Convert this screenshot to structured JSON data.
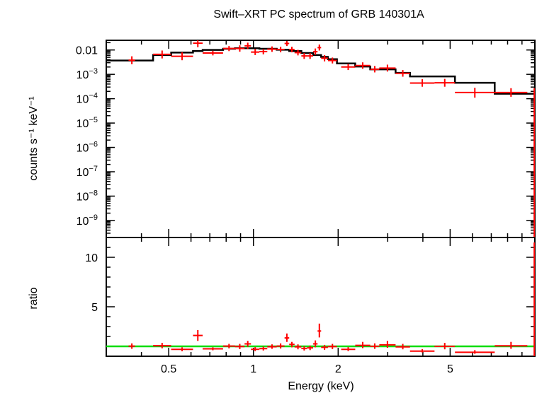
{
  "chart_data": [
    {
      "type": "scatter",
      "panel": "spectrum",
      "title": "Swift–XRT PC spectrum of GRB 140301A",
      "xlabel": "",
      "ylabel": "counts s⁻¹ keV⁻¹",
      "x_scale": "log",
      "y_scale": "log",
      "xlim": [
        0.3,
        10
      ],
      "ylim": [
        2e-10,
        0.025
      ],
      "y_ticks": [
        {
          "value": 0.01,
          "label": "0.01",
          "mantissa": "0.01",
          "exp": ""
        },
        {
          "value": 0.001,
          "label": "10⁻³",
          "mantissa": "10",
          "exp": "−3"
        },
        {
          "value": 0.0001,
          "label": "10⁻⁴",
          "mantissa": "10",
          "exp": "−4"
        },
        {
          "value": 1e-05,
          "label": "10⁻⁵",
          "mantissa": "10",
          "exp": "−5"
        },
        {
          "value": 1e-06,
          "label": "10⁻⁶",
          "mantissa": "10",
          "exp": "−6"
        },
        {
          "value": 1e-07,
          "label": "10⁻⁷",
          "mantissa": "10",
          "exp": "−7"
        },
        {
          "value": 1e-08,
          "label": "10⁻⁸",
          "mantissa": "10",
          "exp": "−8"
        },
        {
          "value": 1e-09,
          "label": "10⁻⁹",
          "mantissa": "10",
          "exp": "−9"
        }
      ],
      "data_color": "#ff0000",
      "model_color": "#000000",
      "data": [
        {
          "x0": 0.36,
          "x1": 0.38,
          "y": 0.0038,
          "ylo": 0.0026,
          "yhi": 0.0055
        },
        {
          "x0": 0.44,
          "x1": 0.51,
          "y": 0.0066,
          "ylo": 0.0045,
          "yhi": 0.0095
        },
        {
          "x0": 0.51,
          "x1": 0.61,
          "y": 0.0055,
          "ylo": 0.0038,
          "yhi": 0.008
        },
        {
          "x0": 0.61,
          "x1": 0.66,
          "y": 0.019,
          "ylo": 0.013,
          "yhi": 0.026
        },
        {
          "x0": 0.66,
          "x1": 0.78,
          "y": 0.0075,
          "ylo": 0.006,
          "yhi": 0.0093
        },
        {
          "x0": 0.78,
          "x1": 0.86,
          "y": 0.0115,
          "ylo": 0.009,
          "yhi": 0.0145
        },
        {
          "x0": 0.86,
          "x1": 0.93,
          "y": 0.0115,
          "ylo": 0.0085,
          "yhi": 0.0155
        },
        {
          "x0": 0.93,
          "x1": 0.98,
          "y": 0.0148,
          "ylo": 0.011,
          "yhi": 0.02
        },
        {
          "x0": 0.98,
          "x1": 1.05,
          "y": 0.0082,
          "ylo": 0.0062,
          "yhi": 0.011
        },
        {
          "x0": 1.05,
          "x1": 1.12,
          "y": 0.0086,
          "ylo": 0.0066,
          "yhi": 0.011
        },
        {
          "x0": 1.12,
          "x1": 1.21,
          "y": 0.0108,
          "ylo": 0.0084,
          "yhi": 0.014
        },
        {
          "x0": 1.21,
          "x1": 1.29,
          "y": 0.0105,
          "ylo": 0.008,
          "yhi": 0.0135
        },
        {
          "x0": 1.29,
          "x1": 1.34,
          "y": 0.0185,
          "ylo": 0.0145,
          "yhi": 0.0235
        },
        {
          "x0": 1.34,
          "x1": 1.4,
          "y": 0.0105,
          "ylo": 0.008,
          "yhi": 0.0135
        },
        {
          "x0": 1.4,
          "x1": 1.48,
          "y": 0.0078,
          "ylo": 0.006,
          "yhi": 0.0102
        },
        {
          "x0": 1.48,
          "x1": 1.55,
          "y": 0.0057,
          "ylo": 0.0043,
          "yhi": 0.0075
        },
        {
          "x0": 1.55,
          "x1": 1.63,
          "y": 0.0057,
          "ylo": 0.0043,
          "yhi": 0.0075
        },
        {
          "x0": 1.63,
          "x1": 1.69,
          "y": 0.0085,
          "ylo": 0.0063,
          "yhi": 0.0115
        },
        {
          "x0": 1.69,
          "x1": 1.74,
          "y": 0.0125,
          "ylo": 0.0095,
          "yhi": 0.0168
        },
        {
          "x0": 1.74,
          "x1": 1.84,
          "y": 0.0046,
          "ylo": 0.0034,
          "yhi": 0.0062
        },
        {
          "x0": 1.84,
          "x1": 1.98,
          "y": 0.0037,
          "ylo": 0.0028,
          "yhi": 0.0049
        },
        {
          "x0": 2.05,
          "x1": 2.3,
          "y": 0.002,
          "ylo": 0.0015,
          "yhi": 0.0027
        },
        {
          "x0": 2.3,
          "x1": 2.6,
          "y": 0.0023,
          "ylo": 0.0017,
          "yhi": 0.0031
        },
        {
          "x0": 2.6,
          "x1": 2.8,
          "y": 0.0016,
          "ylo": 0.0012,
          "yhi": 0.0022
        },
        {
          "x0": 2.8,
          "x1": 3.2,
          "y": 0.0018,
          "ylo": 0.0013,
          "yhi": 0.0025
        },
        {
          "x0": 3.2,
          "x1": 3.6,
          "y": 0.0011,
          "ylo": 0.0008,
          "yhi": 0.0015
        },
        {
          "x0": 3.6,
          "x1": 4.4,
          "y": 0.00044,
          "ylo": 0.00031,
          "yhi": 0.00063
        },
        {
          "x0": 4.4,
          "x1": 5.2,
          "y": 0.00045,
          "ylo": 0.00031,
          "yhi": 0.00065
        },
        {
          "x0": 5.2,
          "x1": 7.2,
          "y": 0.00018,
          "ylo": 0.00011,
          "yhi": 0.00028
        },
        {
          "x0": 7.2,
          "x1": 9.4,
          "y": 0.00018,
          "ylo": 0.00012,
          "yhi": 0.00027
        },
        {
          "x0": 9.9,
          "x1": 10.0,
          "y": 0.00018,
          "ylo": 2e-10,
          "yhi": 0.00027
        }
      ],
      "model_steps": [
        {
          "x0": 0.3,
          "x1": 0.44,
          "y": 0.0037
        },
        {
          "x0": 0.44,
          "x1": 0.51,
          "y": 0.0062
        },
        {
          "x0": 0.51,
          "x1": 0.61,
          "y": 0.0078
        },
        {
          "x0": 0.61,
          "x1": 0.66,
          "y": 0.009
        },
        {
          "x0": 0.66,
          "x1": 0.78,
          "y": 0.0101
        },
        {
          "x0": 0.78,
          "x1": 0.86,
          "y": 0.0112
        },
        {
          "x0": 0.86,
          "x1": 1.05,
          "y": 0.0118
        },
        {
          "x0": 1.05,
          "x1": 1.21,
          "y": 0.0112
        },
        {
          "x0": 1.21,
          "x1": 1.34,
          "y": 0.0102
        },
        {
          "x0": 1.34,
          "x1": 1.48,
          "y": 0.009
        },
        {
          "x0": 1.48,
          "x1": 1.63,
          "y": 0.0075
        },
        {
          "x0": 1.63,
          "x1": 1.74,
          "y": 0.0062
        },
        {
          "x0": 1.74,
          "x1": 1.84,
          "y": 0.0052
        },
        {
          "x0": 1.84,
          "x1": 1.98,
          "y": 0.0042
        },
        {
          "x0": 1.98,
          "x1": 2.3,
          "y": 0.0028
        },
        {
          "x0": 2.3,
          "x1": 2.6,
          "y": 0.0021
        },
        {
          "x0": 2.6,
          "x1": 3.2,
          "y": 0.0016
        },
        {
          "x0": 3.2,
          "x1": 3.6,
          "y": 0.00115
        },
        {
          "x0": 3.6,
          "x1": 5.2,
          "y": 0.00082
        },
        {
          "x0": 5.2,
          "x1": 7.2,
          "y": 0.00045
        },
        {
          "x0": 7.2,
          "x1": 10.0,
          "y": 0.00016
        }
      ]
    },
    {
      "type": "scatter",
      "panel": "ratio",
      "xlabel": "Energy (keV)",
      "ylabel": "ratio",
      "x_scale": "log",
      "y_scale": "linear",
      "xlim": [
        0.3,
        10
      ],
      "ylim": [
        0,
        12
      ],
      "x_ticks": [
        {
          "value": 0.5,
          "label": "0.5"
        },
        {
          "value": 1,
          "label": "1"
        },
        {
          "value": 2,
          "label": "2"
        },
        {
          "value": 5,
          "label": "5"
        }
      ],
      "y_ticks": [
        {
          "value": 5,
          "label": "5"
        },
        {
          "value": 10,
          "label": "10"
        }
      ],
      "reference_line": 1,
      "reference_color": "#00dd00",
      "data_color": "#ff0000",
      "data": [
        {
          "x0": 0.36,
          "x1": 0.38,
          "y": 1.02,
          "ylo": 0.75,
          "yhi": 1.3
        },
        {
          "x0": 0.44,
          "x1": 0.51,
          "y": 1.06,
          "ylo": 0.8,
          "yhi": 1.35
        },
        {
          "x0": 0.51,
          "x1": 0.61,
          "y": 0.7,
          "ylo": 0.5,
          "yhi": 0.9
        },
        {
          "x0": 0.61,
          "x1": 0.66,
          "y": 2.1,
          "ylo": 1.55,
          "yhi": 2.65
        },
        {
          "x0": 0.66,
          "x1": 0.78,
          "y": 0.75,
          "ylo": 0.6,
          "yhi": 0.9
        },
        {
          "x0": 0.78,
          "x1": 0.86,
          "y": 1.03,
          "ylo": 0.8,
          "yhi": 1.25
        },
        {
          "x0": 0.86,
          "x1": 0.93,
          "y": 0.98,
          "ylo": 0.72,
          "yhi": 1.25
        },
        {
          "x0": 0.93,
          "x1": 0.98,
          "y": 1.25,
          "ylo": 0.95,
          "yhi": 1.55
        },
        {
          "x0": 0.98,
          "x1": 1.05,
          "y": 0.7,
          "ylo": 0.52,
          "yhi": 0.92
        },
        {
          "x0": 1.05,
          "x1": 1.12,
          "y": 0.77,
          "ylo": 0.58,
          "yhi": 0.98
        },
        {
          "x0": 1.12,
          "x1": 1.21,
          "y": 0.96,
          "ylo": 0.75,
          "yhi": 1.2
        },
        {
          "x0": 1.21,
          "x1": 1.29,
          "y": 1.03,
          "ylo": 0.78,
          "yhi": 1.3
        },
        {
          "x0": 1.29,
          "x1": 1.34,
          "y": 1.85,
          "ylo": 1.45,
          "yhi": 2.3
        },
        {
          "x0": 1.34,
          "x1": 1.4,
          "y": 1.2,
          "ylo": 0.9,
          "yhi": 1.45
        },
        {
          "x0": 1.4,
          "x1": 1.48,
          "y": 0.95,
          "ylo": 0.7,
          "yhi": 1.2
        },
        {
          "x0": 1.48,
          "x1": 1.55,
          "y": 0.78,
          "ylo": 0.58,
          "yhi": 1.0
        },
        {
          "x0": 1.55,
          "x1": 1.63,
          "y": 0.85,
          "ylo": 0.62,
          "yhi": 1.08
        },
        {
          "x0": 1.63,
          "x1": 1.69,
          "y": 1.25,
          "ylo": 0.9,
          "yhi": 1.6
        },
        {
          "x0": 1.69,
          "x1": 1.74,
          "y": 2.55,
          "ylo": 1.9,
          "yhi": 3.3
        },
        {
          "x0": 1.74,
          "x1": 1.84,
          "y": 0.9,
          "ylo": 0.65,
          "yhi": 1.15
        },
        {
          "x0": 1.84,
          "x1": 1.98,
          "y": 0.98,
          "ylo": 0.72,
          "yhi": 1.25
        },
        {
          "x0": 2.05,
          "x1": 2.3,
          "y": 0.7,
          "ylo": 0.52,
          "yhi": 0.92
        },
        {
          "x0": 2.3,
          "x1": 2.6,
          "y": 1.1,
          "ylo": 0.82,
          "yhi": 1.45
        },
        {
          "x0": 2.6,
          "x1": 2.8,
          "y": 1.0,
          "ylo": 0.75,
          "yhi": 1.3
        },
        {
          "x0": 2.8,
          "x1": 3.2,
          "y": 1.15,
          "ylo": 0.85,
          "yhi": 1.55
        },
        {
          "x0": 3.2,
          "x1": 3.6,
          "y": 0.95,
          "ylo": 0.7,
          "yhi": 1.25
        },
        {
          "x0": 3.6,
          "x1": 4.4,
          "y": 0.52,
          "ylo": 0.38,
          "yhi": 0.72
        },
        {
          "x0": 4.4,
          "x1": 5.2,
          "y": 1.0,
          "ylo": 0.7,
          "yhi": 1.35
        },
        {
          "x0": 5.2,
          "x1": 7.2,
          "y": 0.4,
          "ylo": 0.25,
          "yhi": 0.62
        },
        {
          "x0": 7.2,
          "x1": 9.4,
          "y": 1.05,
          "ylo": 0.75,
          "yhi": 1.45
        },
        {
          "x0": 9.9,
          "x1": 10.0,
          "y": 1.0,
          "ylo": 0.0,
          "yhi": 11.5
        }
      ]
    }
  ]
}
